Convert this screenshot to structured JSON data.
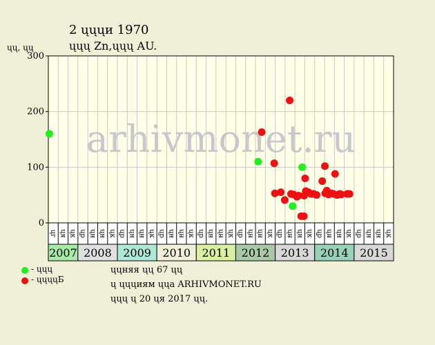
{
  "title": "2 ųųųи 1970",
  "subtitle": "ųųų Zn,ųųų AU.",
  "y_axis_label": "ųų, ųų",
  "watermark": "arhivmonet.ru",
  "legend": [
    {
      "label": "- ųųų",
      "color": "#22ee22"
    },
    {
      "label": "- ųųųųБ",
      "color": "#ee1111"
    }
  ],
  "notes": [
    "ųųняя ųų 67 ųų",
    "ų ųųųиям ųųа ARHIVMONET.RU",
    "ųųų ų 20 ųя 2017 ųų."
  ],
  "colors": {
    "background": "#f0f0d8",
    "plot_background": "#ffffe8",
    "green": "#22ee22",
    "red": "#ee1111",
    "grid": "#c8c8c8",
    "watermark": "#c8c8cc"
  },
  "chart_data": {
    "type": "scatter",
    "ylim": [
      0,
      300
    ],
    "yticks": [
      0,
      100,
      200,
      300
    ],
    "grid": true,
    "x_unit": "month index (0 = start of 2007)",
    "years": [
      {
        "label": "2007",
        "months": [
          "ųг",
          "ųя",
          "ųк"
        ],
        "color": "#a8e8a8"
      },
      {
        "label": "2008",
        "months": [
          "ųр",
          "ųн",
          "ųн",
          "ųк"
        ],
        "color": "#e0e0e0"
      },
      {
        "label": "2009",
        "months": [
          "ųр",
          "ųн",
          "ųн",
          "ųк"
        ],
        "color": "#b0e8d8"
      },
      {
        "label": "2010",
        "months": [
          "ųр",
          "ųн",
          "ųн",
          "ųк"
        ],
        "color": "#f0f0d8"
      },
      {
        "label": "2011",
        "months": [
          "ųр",
          "ųн",
          "ųн",
          "ųк"
        ],
        "color": "#d8f0a0"
      },
      {
        "label": "2012",
        "months": [
          "ųр",
          "ųн",
          "ųн",
          "ųк"
        ],
        "color": "#a8c8a8"
      },
      {
        "label": "2013",
        "months": [
          "ųр",
          "ųн",
          "ųн",
          "ųк"
        ],
        "color": "#d8d8d8"
      },
      {
        "label": "2014",
        "months": [
          "ųр",
          "ųн",
          "ųн",
          "ųк"
        ],
        "color": "#98d0b8"
      },
      {
        "label": "2015",
        "months": [
          "ųр",
          "ųн",
          "ųн",
          "ųк"
        ],
        "color": "#d8d8d8"
      }
    ],
    "series": [
      {
        "key": "green",
        "points": [
          {
            "x": 0.3,
            "y": 160
          },
          {
            "x": 63.8,
            "y": 110
          },
          {
            "x": 74.3,
            "y": 30
          },
          {
            "x": 77.2,
            "y": 100
          }
        ]
      },
      {
        "key": "red",
        "points": [
          {
            "x": 64.9,
            "y": 163
          },
          {
            "x": 68.7,
            "y": 107
          },
          {
            "x": 68.9,
            "y": 53
          },
          {
            "x": 70.7,
            "y": 55
          },
          {
            "x": 71.9,
            "y": 41
          },
          {
            "x": 73.4,
            "y": 220
          },
          {
            "x": 73.8,
            "y": 52
          },
          {
            "x": 74.6,
            "y": 51
          },
          {
            "x": 75.6,
            "y": 47
          },
          {
            "x": 76.1,
            "y": 49
          },
          {
            "x": 76.9,
            "y": 12
          },
          {
            "x": 77.7,
            "y": 12
          },
          {
            "x": 77.8,
            "y": 49
          },
          {
            "x": 78.1,
            "y": 80
          },
          {
            "x": 78.3,
            "y": 57
          },
          {
            "x": 79.1,
            "y": 55
          },
          {
            "x": 79.9,
            "y": 52
          },
          {
            "x": 80.7,
            "y": 52
          },
          {
            "x": 81.6,
            "y": 50
          },
          {
            "x": 83.3,
            "y": 75
          },
          {
            "x": 84.1,
            "y": 102
          },
          {
            "x": 84.2,
            "y": 53
          },
          {
            "x": 84.7,
            "y": 58
          },
          {
            "x": 85.2,
            "y": 51
          },
          {
            "x": 86.1,
            "y": 53
          },
          {
            "x": 86.7,
            "y": 52
          },
          {
            "x": 87.2,
            "y": 88
          },
          {
            "x": 87.8,
            "y": 50
          },
          {
            "x": 88.6,
            "y": 52
          },
          {
            "x": 89.1,
            "y": 51
          },
          {
            "x": 90.9,
            "y": 52
          },
          {
            "x": 91.6,
            "y": 52
          }
        ]
      }
    ]
  }
}
